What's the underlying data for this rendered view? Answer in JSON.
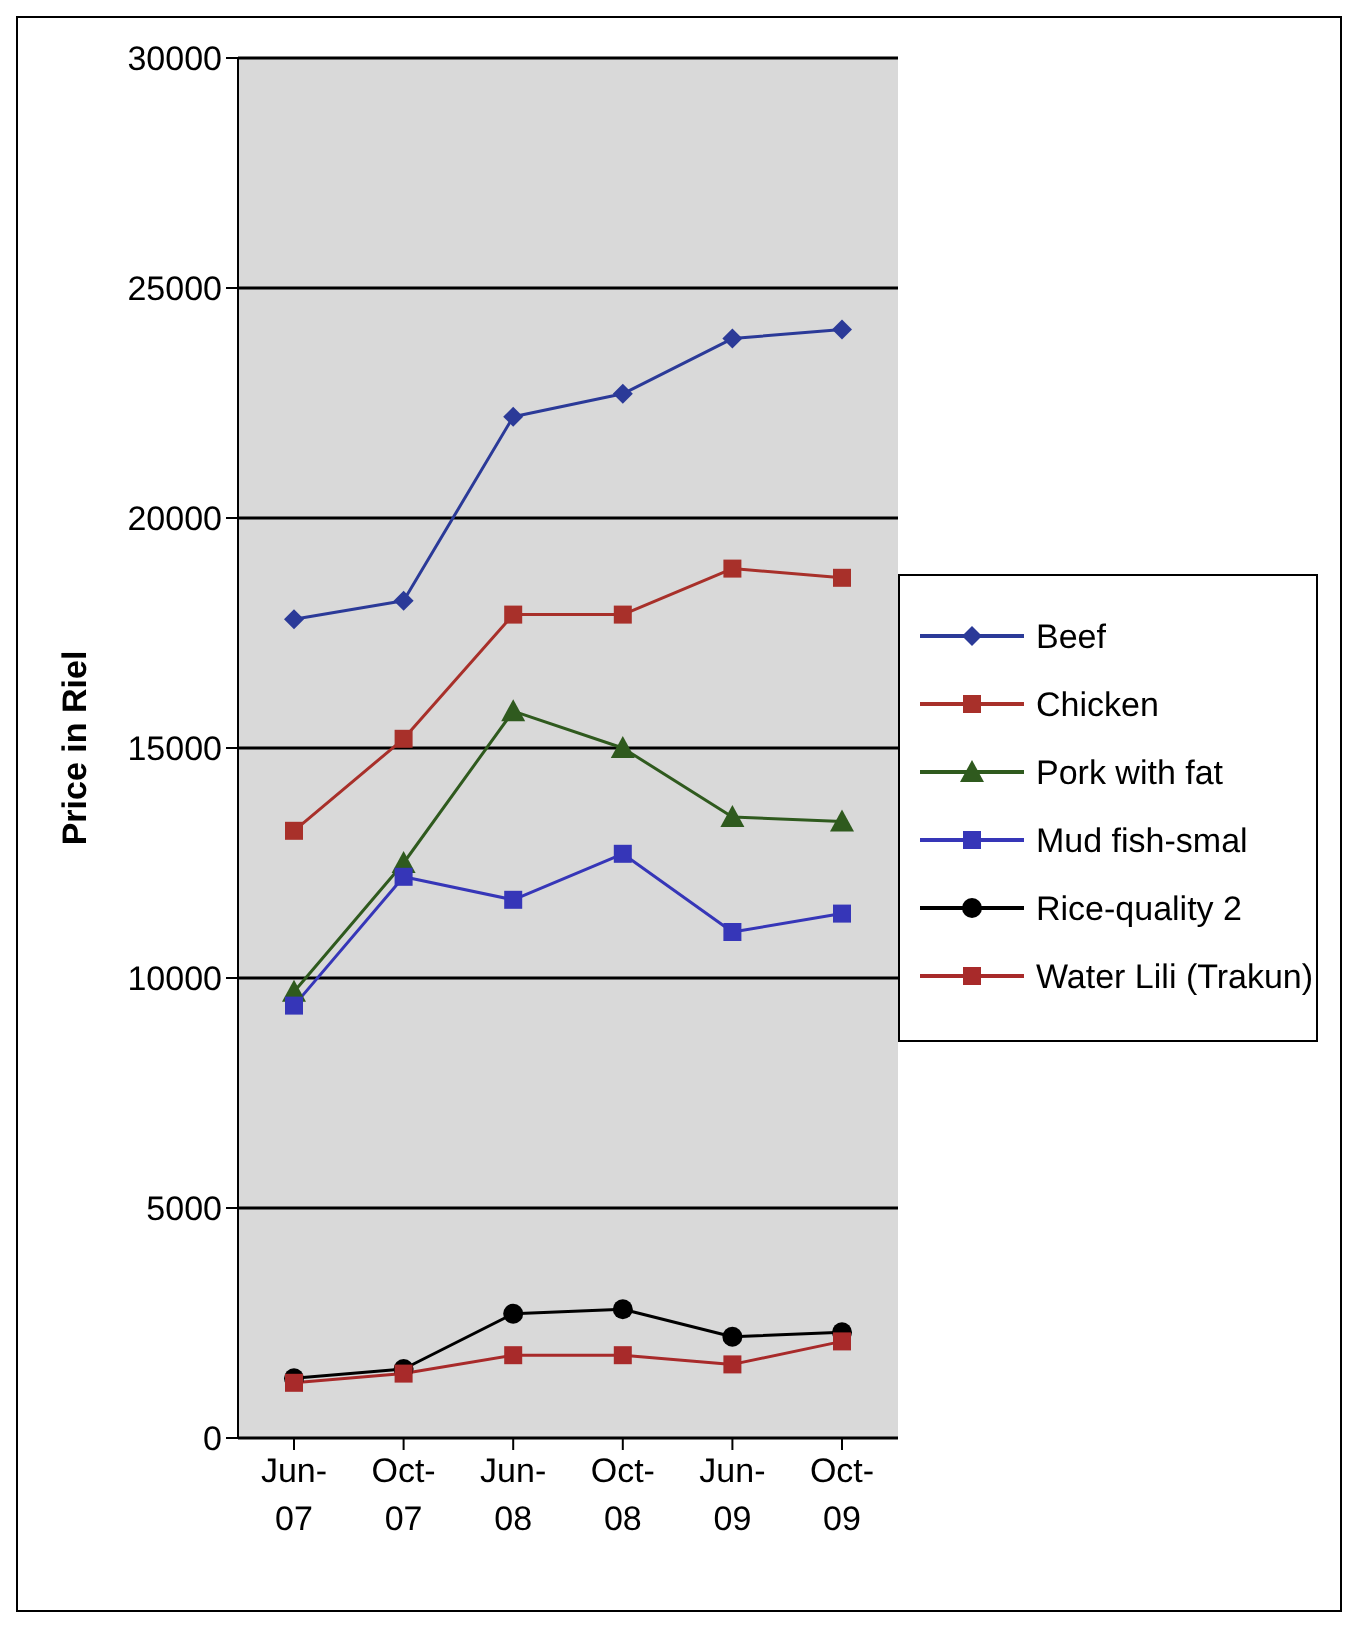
{
  "chart_data": {
    "type": "line",
    "ylabel": "Price in Riel",
    "categories": [
      "Jun-07",
      "Oct-07",
      "Jun-08",
      "Oct-08",
      "Jun-09",
      "Oct-09"
    ],
    "ylim": [
      0,
      30000
    ],
    "yticks": [
      0,
      5000,
      10000,
      15000,
      20000,
      25000,
      30000
    ],
    "grid": "y",
    "legend": "right",
    "series": [
      {
        "name": "Beef",
        "color": "#2b3a98",
        "marker": "diamond",
        "values": [
          17800,
          18200,
          22200,
          22700,
          23900,
          24100
        ]
      },
      {
        "name": "Chicken",
        "color": "#a8302a",
        "marker": "square",
        "values": [
          13200,
          15200,
          17900,
          17900,
          18900,
          18700
        ]
      },
      {
        "name": "Pork with fat",
        "color": "#2f5a1e",
        "marker": "triangle",
        "values": [
          9700,
          12500,
          15800,
          15000,
          13500,
          13400
        ]
      },
      {
        "name": "Mud fish-smal",
        "color": "#3636b8",
        "marker": "square",
        "values": [
          9400,
          12200,
          11700,
          12700,
          11000,
          11400
        ]
      },
      {
        "name": "Rice-quality 2",
        "color": "#000000",
        "marker": "circle",
        "values": [
          1300,
          1500,
          2700,
          2800,
          2200,
          2300
        ]
      },
      {
        "name": "Water Lili (Trakun)",
        "color": "#a82a2a",
        "marker": "square",
        "values": [
          1200,
          1400,
          1800,
          1800,
          1600,
          2100
        ]
      }
    ]
  }
}
